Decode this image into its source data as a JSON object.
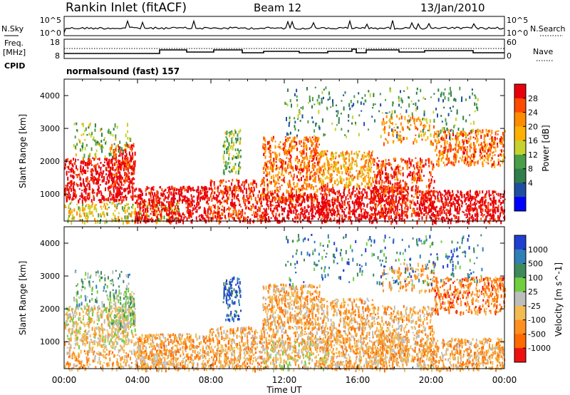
{
  "header": {
    "station": "Rankin Inlet (fitACF)",
    "beam": "Beam 12",
    "date": "13/Jan/2010"
  },
  "panels": {
    "nsky_label": "N.Sky",
    "nsky_ticks": [
      "10^5",
      "10^0"
    ],
    "nsearch_label": "N.Search",
    "nsearch_ticks": [
      "10^5",
      "10^0"
    ],
    "freq_label_1": "Freq.",
    "freq_label_2": "[MHz]",
    "freq_ticks": [
      "18",
      "8"
    ],
    "nave_label": "Nave",
    "nave_ticks": [
      "60",
      "0"
    ],
    "cpid_label": "CPID",
    "cpid_value": "normalsound (fast) 157"
  },
  "chart_data": [
    {
      "type": "heatmap",
      "name": "power",
      "ylabel": "Slant Range [km]",
      "y_ticks": [
        "4000",
        "3000",
        "2000",
        "1000"
      ],
      "ylim": [
        180,
        4500
      ],
      "colorbar_label": "Power [dB]",
      "colorbar_ticks": [
        "28",
        "24",
        "20",
        "16",
        "12",
        "8",
        "4"
      ],
      "colorbar_colors": [
        "#e8000b",
        "#ff4a00",
        "#ff8c00",
        "#ffb000",
        "#c8d22c",
        "#4a9e47",
        "#2e7f4a",
        "#1f4fa0",
        "#0000ff"
      ]
    },
    {
      "type": "heatmap",
      "name": "velocity",
      "ylabel": "Slant Range [km]",
      "y_ticks": [
        "4000",
        "3000",
        "2000",
        "1000"
      ],
      "ylim": [
        180,
        4500
      ],
      "colorbar_label": "Velocity [m s^-1]",
      "colorbar_ticks": [
        "1000",
        "500",
        "100",
        "25",
        "-25",
        "-100",
        "-500",
        "-1000"
      ],
      "colorbar_colors": [
        "#1f3fd0",
        "#2f7fb8",
        "#3f8a5a",
        "#6fcf3f",
        "#bdbdbd",
        "#f2bc52",
        "#ff9020",
        "#ff6a00",
        "#ee1010"
      ]
    }
  ],
  "x_axis": {
    "ticks": [
      "00:00",
      "04:00",
      "08:00",
      "12:00",
      "16:00",
      "20:00",
      "00:00"
    ],
    "label": "Time UT"
  }
}
